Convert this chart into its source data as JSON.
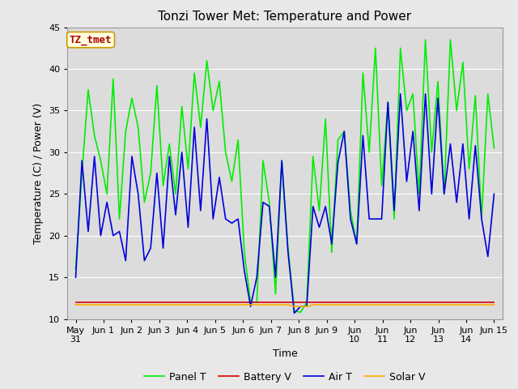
{
  "title": "Tonzi Tower Met: Temperature and Power",
  "xlabel": "Time",
  "ylabel": "Temperature (C) / Power (V)",
  "ylim": [
    10,
    45
  ],
  "annotation_text": "TZ_tmet",
  "fig_bg_color": "#e8e8e8",
  "plot_bg_color": "#dcdcdc",
  "legend_labels": [
    "Panel T",
    "Battery V",
    "Air T",
    "Solar V"
  ],
  "legend_colors": [
    "#00ee00",
    "#dd0000",
    "#0000dd",
    "#ffaa00"
  ],
  "grid_color": "#ffffff",
  "title_fontsize": 11,
  "tick_label_fontsize": 8,
  "axis_label_fontsize": 9,
  "panel_T": [
    16,
    27.5,
    37.5,
    32,
    29,
    25,
    38.8,
    22,
    32.5,
    36.5,
    33,
    24,
    27.5,
    38,
    26,
    31,
    25,
    35.5,
    28,
    39.5,
    33,
    41,
    35,
    38.5,
    30,
    26.5,
    31.5,
    18,
    12,
    12,
    29,
    24,
    13,
    29,
    18.5,
    11,
    10.8,
    12,
    29.5,
    23,
    34,
    18,
    31.5,
    32.5,
    23,
    19,
    39.5,
    30,
    42.5,
    26,
    36,
    22,
    42.5,
    35,
    37,
    25,
    43.5,
    30,
    38.5,
    25,
    43.5,
    35,
    40.8,
    28,
    36.8,
    22,
    37,
    30.5
  ],
  "air_T": [
    15,
    29,
    20.5,
    29.5,
    20,
    24,
    20,
    20.5,
    17,
    29.5,
    25,
    17,
    18.5,
    27.5,
    18.5,
    29.5,
    22.5,
    30,
    21,
    33,
    23,
    34,
    22,
    27,
    22,
    21.5,
    22,
    15.8,
    11.5,
    15,
    24,
    23.5,
    15,
    29,
    18,
    10.7,
    11.5,
    11.5,
    23.5,
    21,
    23.5,
    19,
    28.8,
    32.5,
    22,
    19,
    32,
    22,
    22,
    22,
    36,
    23,
    37,
    26.5,
    32.5,
    23,
    37,
    25,
    36.5,
    25,
    31,
    24,
    31,
    22,
    30.8,
    22,
    17.5,
    25
  ],
  "battery_V": [
    12,
    12,
    12,
    12,
    12,
    12,
    12,
    12,
    12,
    12,
    12,
    12,
    12,
    12,
    12,
    12,
    12,
    12,
    12,
    12,
    12,
    12,
    12,
    12,
    12,
    12,
    12,
    12,
    12,
    12,
    12,
    12,
    12,
    12,
    12,
    12,
    12,
    12,
    12,
    12,
    12,
    12,
    12,
    12,
    12,
    12,
    12,
    12,
    12,
    12,
    12,
    12,
    12,
    12,
    12,
    12,
    12,
    12,
    12,
    12,
    12,
    12,
    12,
    12,
    12,
    12,
    12,
    12
  ],
  "solar_V": [
    11.7,
    11.7,
    11.7,
    11.7,
    11.7,
    11.7,
    11.7,
    11.7,
    11.7,
    11.7,
    11.7,
    11.7,
    11.7,
    11.7,
    11.7,
    11.7,
    11.7,
    11.7,
    11.7,
    11.7,
    11.7,
    11.7,
    11.7,
    11.7,
    11.7,
    11.7,
    11.7,
    11.7,
    11.7,
    11.7,
    11.7,
    11.7,
    11.7,
    11.7,
    11.7,
    11.5,
    11.5,
    11.5,
    11.7,
    11.7,
    11.7,
    11.7,
    11.7,
    11.7,
    11.7,
    11.7,
    11.7,
    11.7,
    11.7,
    11.7,
    11.7,
    11.7,
    11.7,
    11.7,
    11.7,
    11.7,
    11.7,
    11.7,
    11.7,
    11.7,
    11.7,
    11.7,
    11.7,
    11.7,
    11.7,
    11.7,
    11.7,
    11.7
  ],
  "yticks": [
    10,
    15,
    20,
    25,
    30,
    35,
    40,
    45
  ],
  "x_tick_positions": [
    0,
    1,
    2,
    3,
    4,
    5,
    6,
    7,
    8,
    9,
    10,
    11,
    12,
    13,
    14,
    15
  ]
}
